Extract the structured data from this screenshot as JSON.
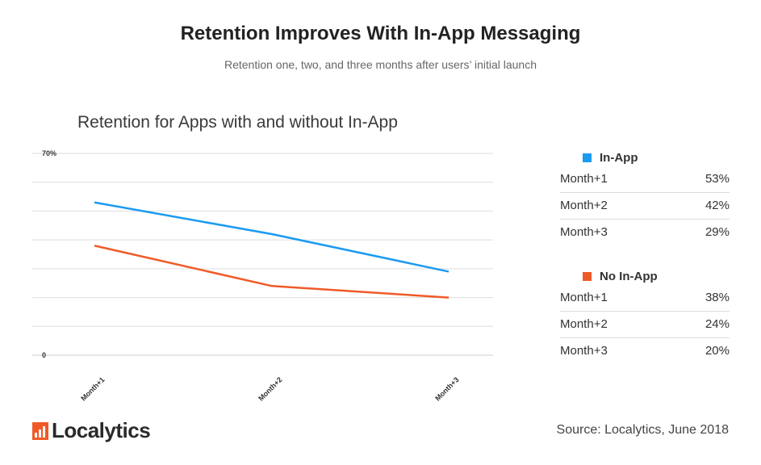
{
  "header": {
    "title": "Retention Improves With In-App Messaging",
    "subtitle": "Retention one, two, and three months after users’ initial launch"
  },
  "chart_data": {
    "type": "line",
    "title": "Retention for Apps with and without In-App",
    "categories": [
      "Month+1",
      "Month+2",
      "Month+3"
    ],
    "ylim": [
      0,
      70
    ],
    "y_tick_labels": [
      "0",
      "70%"
    ],
    "grid": true,
    "series": [
      {
        "name": "In-App",
        "values": [
          53,
          42,
          29
        ],
        "color": "#1a9bf0"
      },
      {
        "name": "No In-App",
        "values": [
          38,
          24,
          20
        ],
        "color": "#f05a28"
      }
    ]
  },
  "legend": {
    "groups": [
      {
        "name": "In-App",
        "color": "#1a9bf0",
        "rows": [
          {
            "label": "Month+1",
            "value": "53%"
          },
          {
            "label": "Month+2",
            "value": "42%"
          },
          {
            "label": "Month+3",
            "value": "29%"
          }
        ]
      },
      {
        "name": "No In-App",
        "color": "#f05a28",
        "rows": [
          {
            "label": "Month+1",
            "value": "38%"
          },
          {
            "label": "Month+2",
            "value": "24%"
          },
          {
            "label": "Month+3",
            "value": "20%"
          }
        ]
      }
    ]
  },
  "footer": {
    "logo_text": "Localytics",
    "logo_icon": "localytics-logo-icon",
    "source": "Source: Localytics, June 2018"
  }
}
